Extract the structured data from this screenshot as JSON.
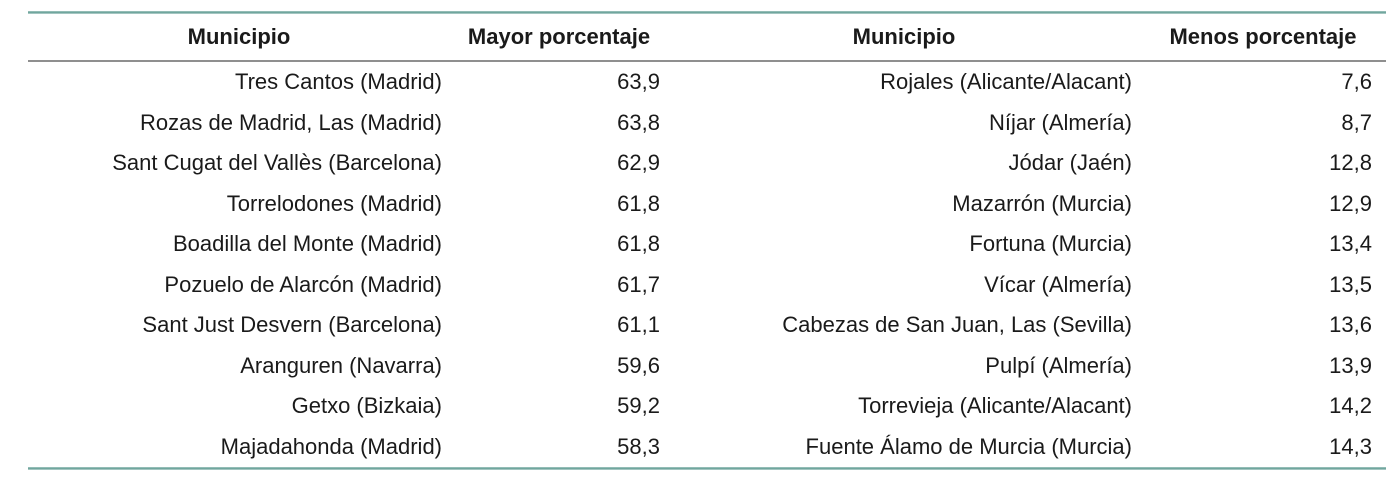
{
  "table": {
    "headers": [
      "Municipio",
      "Mayor porcentaje",
      "Municipio",
      "Menos porcentaje"
    ],
    "rows": [
      {
        "high_municipality": "Tres Cantos (Madrid)",
        "high_value": "63,9",
        "low_municipality": "Rojales (Alicante/Alacant)",
        "low_value": "7,6"
      },
      {
        "high_municipality": "Rozas de Madrid, Las (Madrid)",
        "high_value": "63,8",
        "low_municipality": "Níjar (Almería)",
        "low_value": "8,7"
      },
      {
        "high_municipality": "Sant Cugat del Vallès (Barcelona)",
        "high_value": "62,9",
        "low_municipality": "Jódar (Jaén)",
        "low_value": "12,8"
      },
      {
        "high_municipality": "Torrelodones (Madrid)",
        "high_value": "61,8",
        "low_municipality": "Mazarrón (Murcia)",
        "low_value": "12,9"
      },
      {
        "high_municipality": "Boadilla del Monte (Madrid)",
        "high_value": "61,8",
        "low_municipality": "Fortuna (Murcia)",
        "low_value": "13,4"
      },
      {
        "high_municipality": "Pozuelo de Alarcón (Madrid)",
        "high_value": "61,7",
        "low_municipality": "Vícar (Almería)",
        "low_value": "13,5"
      },
      {
        "high_municipality": "Sant Just Desvern (Barcelona)",
        "high_value": "61,1",
        "low_municipality": "Cabezas de San Juan, Las (Sevilla)",
        "low_value": "13,6"
      },
      {
        "high_municipality": "Aranguren (Navarra)",
        "high_value": "59,6",
        "low_municipality": "Pulpí (Almería)",
        "low_value": "13,9"
      },
      {
        "high_municipality": "Getxo (Bizkaia)",
        "high_value": "59,2",
        "low_municipality": "Torrevieja (Alicante/Alacant)",
        "low_value": "14,2"
      },
      {
        "high_municipality": "Majadahonda (Madrid)",
        "high_value": "58,3",
        "low_municipality": "Fuente Álamo de Murcia (Murcia)",
        "low_value": "14,3"
      }
    ]
  },
  "colors": {
    "accent_teal": "#6ea59d",
    "header_rule_gray": "#8f8f8f",
    "text": "#1a1a1a",
    "background": "#ffffff"
  }
}
